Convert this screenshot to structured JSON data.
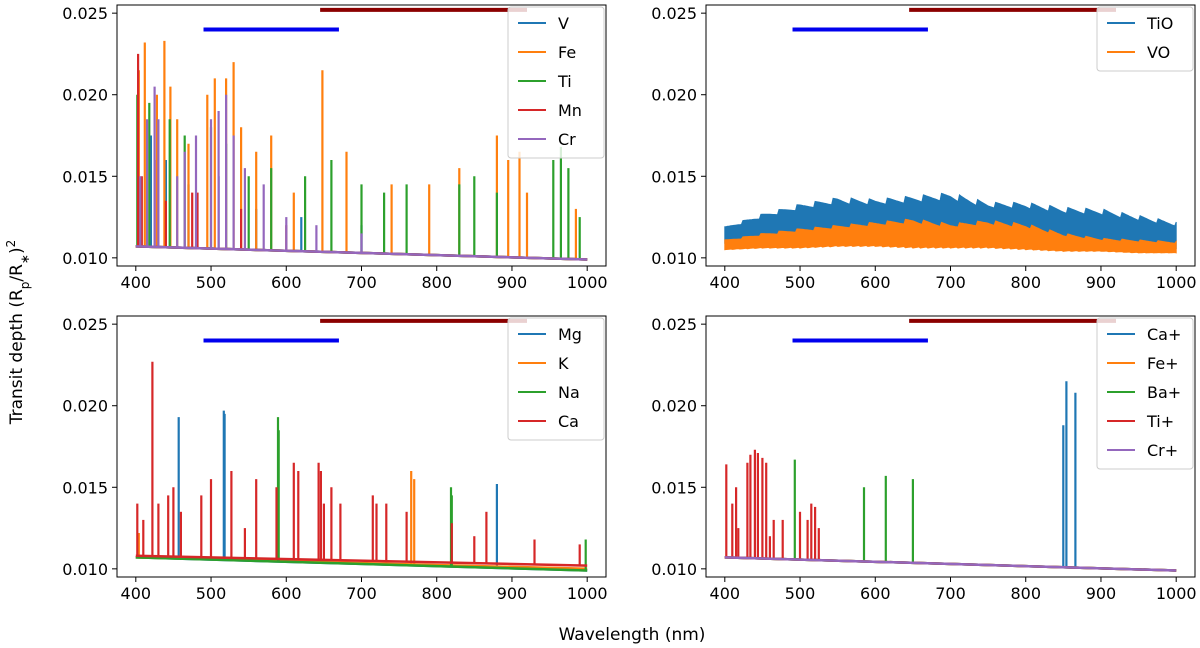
{
  "figure": {
    "xlabel": "Wavelength (nm)",
    "ylabel_main": "Transit depth (R",
    "ylabel_sub1": "p",
    "ylabel_mid": "/R",
    "ylabel_sub2": "∗",
    "ylabel_close": ")",
    "ylabel_sup": "2"
  },
  "chart_data": [
    {
      "type": "line",
      "title": "",
      "xlabel": "",
      "ylabel": "",
      "xlim": [
        375,
        1025
      ],
      "ylim": [
        0.0095,
        0.0255
      ],
      "xticks": [
        "400",
        "500",
        "600",
        "700",
        "800",
        "900",
        "1000"
      ],
      "yticks": [
        "0.010",
        "0.015",
        "0.020",
        "0.025"
      ],
      "legend_position": "top-right",
      "bands": [
        {
          "color": "#0000ee",
          "x": [
            490,
            670
          ],
          "y": 0.024
        },
        {
          "color": "#8b0000",
          "x": [
            645,
            920
          ],
          "y": 0.0252
        }
      ],
      "series": [
        {
          "name": "V",
          "color": "#1f77b4",
          "base": [
            0.0107,
            0.0099
          ],
          "spikes": [
            [
              405,
              0.0145
            ],
            [
              420,
              0.0175
            ],
            [
              440,
              0.016
            ],
            [
              470,
              0.0145
            ],
            [
              510,
              0.015
            ],
            [
              560,
              0.013
            ],
            [
              620,
              0.0125
            ],
            [
              700,
              0.012
            ]
          ]
        },
        {
          "name": "Fe",
          "color": "#ff7f0e",
          "base": [
            0.0107,
            0.0099
          ],
          "spikes": [
            [
              404,
              0.0215
            ],
            [
              412,
              0.0232
            ],
            [
              428,
              0.02
            ],
            [
              438,
              0.0233
            ],
            [
              446,
              0.0205
            ],
            [
              455,
              0.0185
            ],
            [
              470,
              0.017
            ],
            [
              495,
              0.02
            ],
            [
              505,
              0.021
            ],
            [
              520,
              0.021
            ],
            [
              530,
              0.022
            ],
            [
              540,
              0.018
            ],
            [
              560,
              0.0165
            ],
            [
              580,
              0.0175
            ],
            [
              610,
              0.014
            ],
            [
              648,
              0.0215
            ],
            [
              680,
              0.0165
            ],
            [
              740,
              0.0145
            ],
            [
              790,
              0.0145
            ],
            [
              830,
              0.0155
            ],
            [
              880,
              0.0175
            ],
            [
              895,
              0.016
            ],
            [
              910,
              0.0165
            ],
            [
              920,
              0.014
            ],
            [
              985,
              0.013
            ]
          ]
        },
        {
          "name": "Ti",
          "color": "#2ca02c",
          "base": [
            0.0107,
            0.0099
          ],
          "spikes": [
            [
              402,
              0.02
            ],
            [
              418,
              0.0195
            ],
            [
              445,
              0.0185
            ],
            [
              465,
              0.0175
            ],
            [
              500,
              0.018
            ],
            [
              520,
              0.017
            ],
            [
              550,
              0.015
            ],
            [
              580,
              0.0155
            ],
            [
              625,
              0.015
            ],
            [
              660,
              0.016
            ],
            [
              700,
              0.0145
            ],
            [
              730,
              0.014
            ],
            [
              760,
              0.0145
            ],
            [
              830,
              0.0145
            ],
            [
              850,
              0.015
            ],
            [
              880,
              0.014
            ],
            [
              955,
              0.016
            ],
            [
              965,
              0.0168
            ],
            [
              975,
              0.0155
            ],
            [
              990,
              0.0125
            ]
          ]
        },
        {
          "name": "Mn",
          "color": "#d62728",
          "base": [
            0.0107,
            0.0099
          ],
          "spikes": [
            [
              403,
              0.0225
            ],
            [
              408,
              0.015
            ],
            [
              425,
              0.016
            ],
            [
              440,
              0.0135
            ],
            [
              475,
              0.014
            ],
            [
              482,
              0.014
            ],
            [
              540,
              0.013
            ],
            [
              600,
              0.012
            ]
          ]
        },
        {
          "name": "Cr",
          "color": "#9467bd",
          "base": [
            0.0107,
            0.0099
          ],
          "spikes": [
            [
              406,
              0.015
            ],
            [
              415,
              0.0185
            ],
            [
              425,
              0.0205
            ],
            [
              430,
              0.0185
            ],
            [
              455,
              0.015
            ],
            [
              465,
              0.0165
            ],
            [
              480,
              0.0175
            ],
            [
              500,
              0.0185
            ],
            [
              510,
              0.019
            ],
            [
              520,
              0.02
            ],
            [
              530,
              0.0175
            ],
            [
              545,
              0.0155
            ],
            [
              570,
              0.0145
            ],
            [
              600,
              0.0125
            ],
            [
              640,
              0.012
            ],
            [
              700,
              0.0115
            ]
          ]
        }
      ]
    },
    {
      "type": "line",
      "title": "",
      "xlabel": "",
      "ylabel": "",
      "xlim": [
        375,
        1025
      ],
      "ylim": [
        0.0095,
        0.0255
      ],
      "xticks": [
        "400",
        "500",
        "600",
        "700",
        "800",
        "900",
        "1000"
      ],
      "yticks": [
        "0.010",
        "0.015",
        "0.020",
        "0.025"
      ],
      "legend_position": "top-right",
      "bands": [
        {
          "color": "#0000ee",
          "x": [
            490,
            670
          ],
          "y": 0.024
        },
        {
          "color": "#8b0000",
          "x": [
            645,
            920
          ],
          "y": 0.0252
        }
      ],
      "series": [
        {
          "name": "TiO",
          "color": "#1f77b4",
          "band": {
            "x": [
              400,
              450,
              500,
              550,
              600,
              650,
              700,
              750,
              800,
              850,
              900,
              950,
              1000
            ],
            "low": [
              0.0109,
              0.0111,
              0.0112,
              0.0113,
              0.0114,
              0.0113,
              0.0112,
              0.0113,
              0.0112,
              0.0109,
              0.0108,
              0.0107,
              0.0106
            ],
            "high": [
              0.0119,
              0.0127,
              0.0133,
              0.0137,
              0.0136,
              0.0138,
              0.014,
              0.0134,
              0.0134,
              0.0131,
              0.013,
              0.0126,
              0.0122
            ]
          }
        },
        {
          "name": "VO",
          "color": "#ff7f0e",
          "band": {
            "x": [
              400,
              450,
              500,
              550,
              600,
              650,
              700,
              750,
              800,
              850,
              900,
              950,
              1000
            ],
            "low": [
              0.0105,
              0.0106,
              0.0106,
              0.0107,
              0.0107,
              0.0106,
              0.0106,
              0.0106,
              0.0105,
              0.0104,
              0.0104,
              0.0103,
              0.0103
            ],
            "high": [
              0.0111,
              0.0115,
              0.0118,
              0.012,
              0.0122,
              0.0124,
              0.0121,
              0.0123,
              0.0121,
              0.0115,
              0.0112,
              0.0111,
              0.011
            ]
          }
        }
      ]
    },
    {
      "type": "line",
      "title": "",
      "xlabel": "",
      "ylabel": "",
      "xlim": [
        375,
        1025
      ],
      "ylim": [
        0.0095,
        0.0255
      ],
      "xticks": [
        "400",
        "500",
        "600",
        "700",
        "800",
        "900",
        "1000"
      ],
      "yticks": [
        "0.010",
        "0.015",
        "0.020",
        "0.025"
      ],
      "legend_position": "top-right",
      "bands": [
        {
          "color": "#0000ee",
          "x": [
            490,
            670
          ],
          "y": 0.024
        },
        {
          "color": "#8b0000",
          "x": [
            645,
            920
          ],
          "y": 0.0252
        }
      ],
      "series": [
        {
          "name": "Mg",
          "color": "#1f77b4",
          "base": [
            0.0107,
            0.0099
          ],
          "spikes": [
            [
              457,
              0.0193
            ],
            [
              517,
              0.0197
            ],
            [
              518,
              0.0195
            ],
            [
              880,
              0.0152
            ]
          ]
        },
        {
          "name": "K",
          "color": "#ff7f0e",
          "base": [
            0.0107,
            0.01
          ],
          "spikes": [
            [
              404,
              0.0122
            ],
            [
              766,
              0.016
            ],
            [
              770,
              0.0155
            ]
          ]
        },
        {
          "name": "Na",
          "color": "#2ca02c",
          "base": [
            0.0107,
            0.0099
          ],
          "spikes": [
            [
              589,
              0.0193
            ],
            [
              590,
              0.0185
            ],
            [
              819,
              0.015
            ],
            [
              820,
              0.0145
            ],
            [
              998,
              0.0118
            ]
          ]
        },
        {
          "name": "Ca",
          "color": "#d62728",
          "base": [
            0.0108,
            0.0102
          ],
          "spikes": [
            [
              402,
              0.014
            ],
            [
              410,
              0.013
            ],
            [
              422,
              0.0227
            ],
            [
              430,
              0.014
            ],
            [
              443,
              0.0145
            ],
            [
              450,
              0.015
            ],
            [
              460,
              0.0135
            ],
            [
              487,
              0.0145
            ],
            [
              500,
              0.0155
            ],
            [
              527,
              0.016
            ],
            [
              545,
              0.0125
            ],
            [
              560,
              0.0155
            ],
            [
              587,
              0.015
            ],
            [
              610,
              0.0165
            ],
            [
              616,
              0.016
            ],
            [
              643,
              0.0165
            ],
            [
              646,
              0.016
            ],
            [
              650,
              0.014
            ],
            [
              660,
              0.015
            ],
            [
              672,
              0.014
            ],
            [
              715,
              0.0145
            ],
            [
              720,
              0.014
            ],
            [
              733,
              0.014
            ],
            [
              760,
              0.0135
            ],
            [
              820,
              0.0128
            ],
            [
              850,
              0.012
            ],
            [
              866,
              0.0135
            ],
            [
              930,
              0.0118
            ],
            [
              990,
              0.0115
            ]
          ]
        }
      ]
    },
    {
      "type": "line",
      "title": "",
      "xlabel": "",
      "ylabel": "",
      "xlim": [
        375,
        1025
      ],
      "ylim": [
        0.0095,
        0.0255
      ],
      "xticks": [
        "400",
        "500",
        "600",
        "700",
        "800",
        "900",
        "1000"
      ],
      "yticks": [
        "0.010",
        "0.015",
        "0.020",
        "0.025"
      ],
      "legend_position": "top-right",
      "bands": [
        {
          "color": "#0000ee",
          "x": [
            490,
            670
          ],
          "y": 0.024
        },
        {
          "color": "#8b0000",
          "x": [
            645,
            920
          ],
          "y": 0.0252
        }
      ],
      "series": [
        {
          "name": "Ca+",
          "color": "#1f77b4",
          "base": [
            0.0107,
            0.0099
          ],
          "spikes": [
            [
              850,
              0.0188
            ],
            [
              854,
              0.0215
            ],
            [
              866,
              0.0208
            ]
          ]
        },
        {
          "name": "Fe+",
          "color": "#ff7f0e",
          "base": [
            0.0107,
            0.0099
          ],
          "spikes": []
        },
        {
          "name": "Ba+",
          "color": "#2ca02c",
          "base": [
            0.0107,
            0.0099
          ],
          "spikes": [
            [
              493,
              0.0167
            ],
            [
              585,
              0.015
            ],
            [
              614,
              0.0157
            ],
            [
              650,
              0.0155
            ]
          ]
        },
        {
          "name": "Ti+",
          "color": "#d62728",
          "base": [
            0.0107,
            0.0099
          ],
          "spikes": [
            [
              402,
              0.0164
            ],
            [
              410,
              0.014
            ],
            [
              415,
              0.015
            ],
            [
              418,
              0.0125
            ],
            [
              430,
              0.0165
            ],
            [
              434,
              0.017
            ],
            [
              440,
              0.0173
            ],
            [
              444,
              0.0171
            ],
            [
              450,
              0.0168
            ],
            [
              455,
              0.0165
            ],
            [
              460,
              0.012
            ],
            [
              465,
              0.013
            ],
            [
              477,
              0.013
            ],
            [
              500,
              0.0135
            ],
            [
              510,
              0.013
            ],
            [
              515,
              0.014
            ],
            [
              520,
              0.0138
            ],
            [
              525,
              0.0125
            ]
          ]
        },
        {
          "name": "Cr+",
          "color": "#9467bd",
          "base": [
            0.0107,
            0.0099
          ],
          "spikes": []
        }
      ]
    }
  ]
}
